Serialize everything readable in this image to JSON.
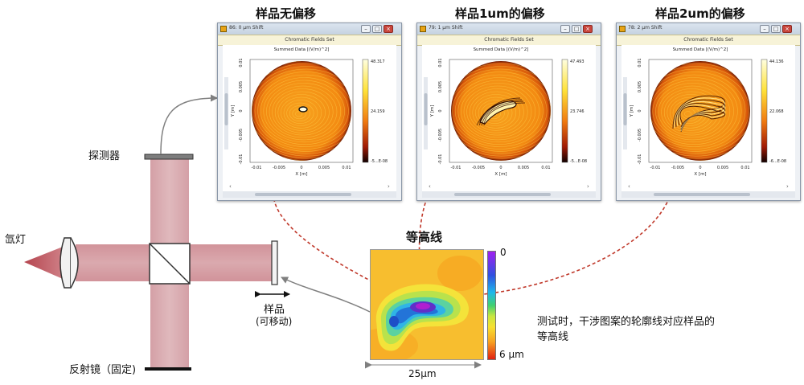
{
  "panels": [
    {
      "heading": "样品无偏移",
      "window_title": "86: 0 µm Shift",
      "tab": "Chromatic Fields Set",
      "plot_title": "Summed Data  [(V/m)^2]",
      "ylabel": "Y [m]",
      "xlabel": "X [m]",
      "xticks": [
        "-0.01",
        "-0.005",
        "0",
        "0.005",
        "0.01"
      ],
      "yticks": [
        "0.01",
        "0.005",
        "0",
        "-0.005",
        "-0.01"
      ],
      "colorbar": [
        "48.317",
        "24.159",
        "-5...E-08"
      ]
    },
    {
      "heading": "样品1um的偏移",
      "window_title": "79: 1 µm Shift",
      "tab": "Chromatic Fields Set",
      "plot_title": "Summed Data  [(V/m)^2]",
      "ylabel": "Y [m]",
      "xlabel": "X [m]",
      "xticks": [
        "-0.01",
        "-0.005",
        "0",
        "0.005",
        "0.01"
      ],
      "yticks": [
        "0.01",
        "0.005",
        "0",
        "-0.005",
        "-0.01"
      ],
      "colorbar": [
        "47.493",
        "23.746",
        "-5...E-08"
      ]
    },
    {
      "heading": "样品2um的偏移",
      "window_title": "78: 2 µm Shift",
      "tab": "Chromatic Fields Set",
      "plot_title": "Summed Data  [(V/m)^2]",
      "ylabel": "Y [m]",
      "xlabel": "X [m]",
      "xticks": [
        "-0.01",
        "-0.005",
        "0",
        "0.005",
        "0.01"
      ],
      "yticks": [
        "0.01",
        "0.005",
        "0",
        "-0.005",
        "-0.01"
      ],
      "colorbar": [
        "44.136",
        "22.068",
        "-6...E-08"
      ]
    }
  ],
  "setup": {
    "detector_label": "探测器",
    "lamp_label": "氙灯",
    "sample_label": "样品",
    "sample_sub_label": "(可移动)",
    "mirror_label": "反射镜（固定)"
  },
  "contour": {
    "title": "等高线",
    "scale_top": "0",
    "scale_bottom": "6 µm",
    "width_label": "25µm"
  },
  "note": {
    "line1": "测试时，干涉图案的轮廓线对应样品的",
    "line2": "等高线"
  },
  "colors": {
    "beam": "#c9737a",
    "arrow_dashed": "#c0392b",
    "arrow_gray": "#7f7f7f",
    "window_border": "#8a97a8"
  }
}
